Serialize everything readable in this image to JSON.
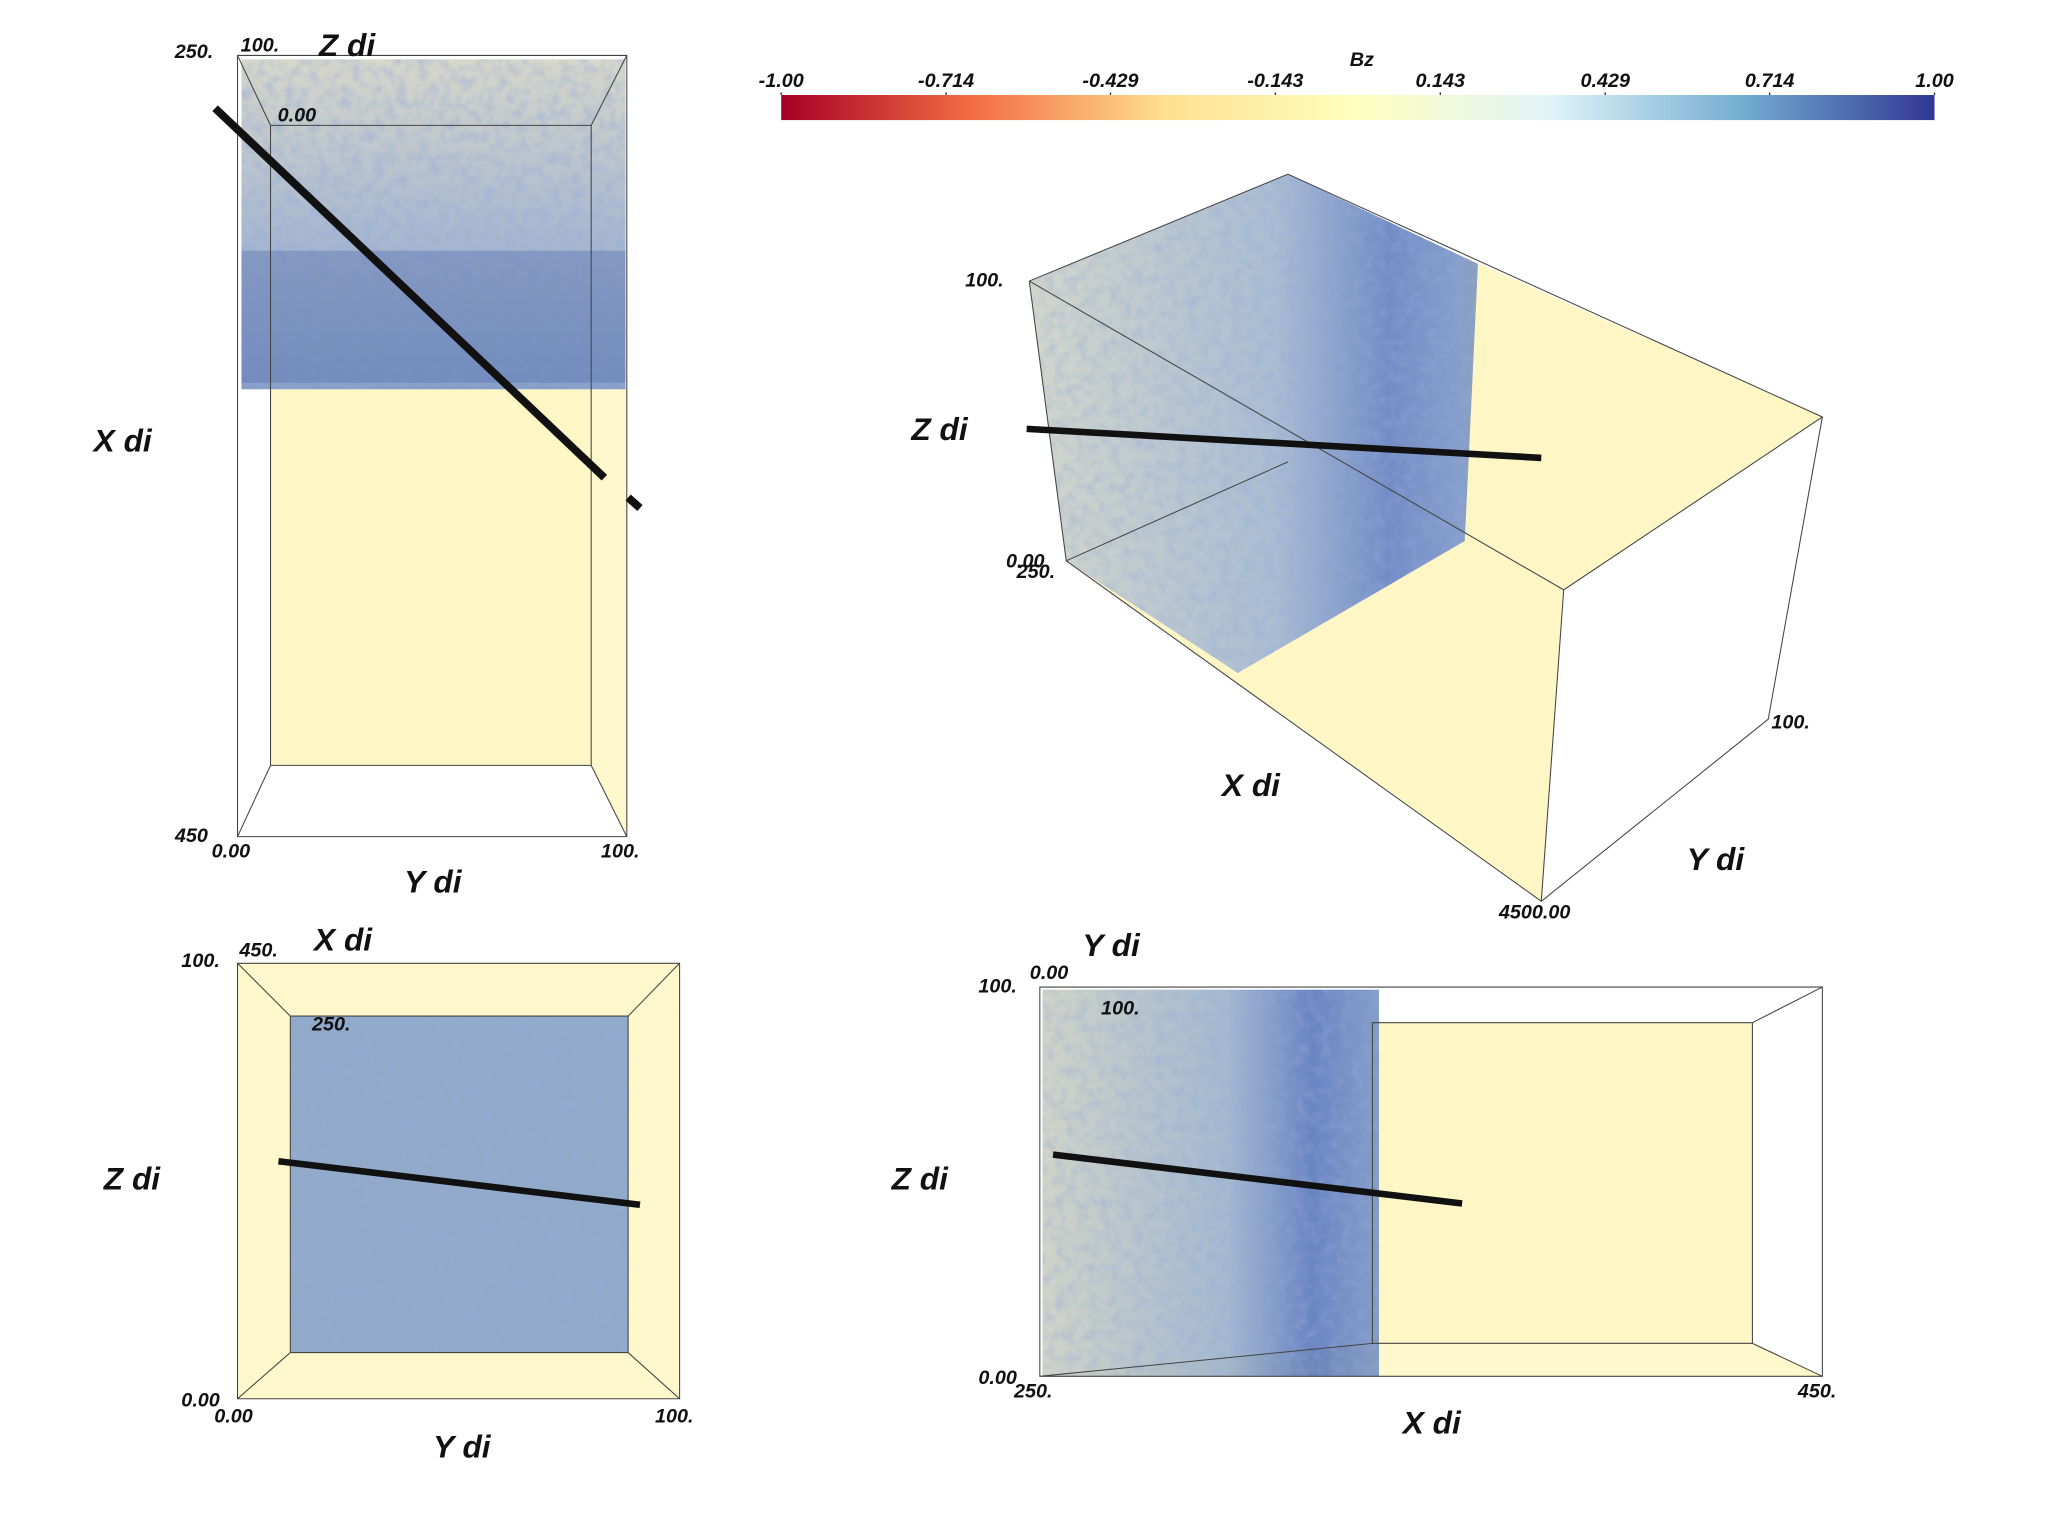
{
  "colorbar": {
    "title": "Bz",
    "ticks": [
      {
        "value": -1,
        "label": "-1.00"
      },
      -0.714,
      -0.429,
      -0.143,
      0.143,
      0.429,
      0.714,
      {
        "value": 1,
        "label": "1.00"
      }
    ],
    "colors": [
      "#a50026",
      "#f46d43",
      "#fee090",
      "#ffffbf",
      "#e0f3f8",
      "#74add1",
      "#313695"
    ]
  },
  "views": [
    {
      "texts": [
        "250.",
        "100.",
        "Z di",
        "0.00",
        "X di",
        "450",
        "0.00",
        "100.",
        "Y di"
      ]
    },
    {
      "texts": [
        "100.",
        "Z di",
        "0.00",
        "250.",
        "X di",
        "4500.00",
        "Y di",
        "100."
      ]
    },
    {
      "texts": [
        "100.",
        "450.",
        "X di",
        "250.",
        "Z di",
        "0.00",
        "0.00",
        "100.",
        "Y di"
      ]
    },
    {
      "texts": [
        "Y di",
        "0.00",
        "100.",
        "100.",
        "Z di",
        "0.00",
        "250.",
        "450.",
        "X di"
      ]
    }
  ]
}
